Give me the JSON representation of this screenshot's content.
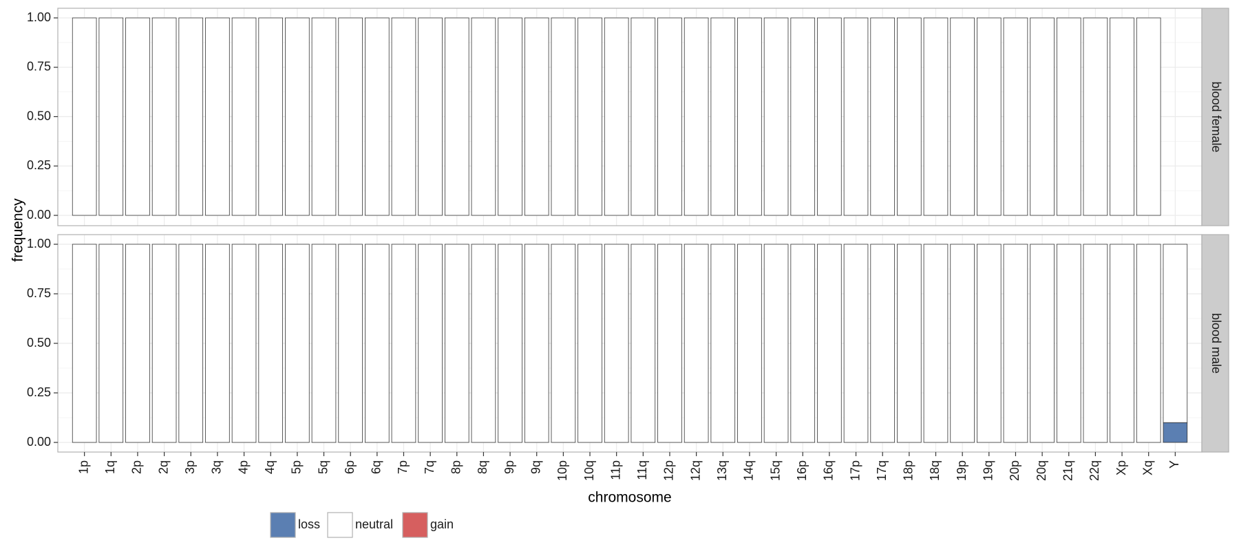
{
  "chart_data": {
    "type": "bar",
    "stacked": true,
    "xlabel": "chromosome",
    "ylabel": "frequency",
    "ylim": [
      0,
      1
    ],
    "y_ticks": [
      "0.00",
      "0.25",
      "0.50",
      "0.75",
      "1.00"
    ],
    "grid": true,
    "legend_position": "bottom",
    "categories": [
      "1p",
      "1q",
      "2p",
      "2q",
      "3p",
      "3q",
      "4p",
      "4q",
      "5p",
      "5q",
      "6p",
      "6q",
      "7p",
      "7q",
      "8p",
      "8q",
      "9p",
      "9q",
      "10p",
      "10q",
      "11p",
      "11q",
      "12p",
      "12q",
      "13q",
      "14q",
      "15q",
      "16p",
      "16q",
      "17p",
      "17q",
      "18p",
      "18q",
      "19p",
      "19q",
      "20p",
      "20q",
      "21q",
      "22q",
      "Xp",
      "Xq",
      "Y"
    ],
    "legend": [
      {
        "label": "loss",
        "color": "#5b7fb2"
      },
      {
        "label": "neutral",
        "color": "#ffffff"
      },
      {
        "label": "gain",
        "color": "#d65f5f"
      }
    ],
    "panels": [
      {
        "strip_label": "blood female",
        "loss": [
          0,
          0,
          0,
          0,
          0,
          0,
          0,
          0,
          0,
          0,
          0,
          0,
          0,
          0,
          0,
          0,
          0,
          0,
          0,
          0,
          0,
          0,
          0,
          0,
          0,
          0,
          0,
          0,
          0,
          0,
          0,
          0,
          0,
          0,
          0,
          0,
          0,
          0,
          0,
          0,
          0,
          0
        ],
        "neutral": [
          1,
          1,
          1,
          1,
          1,
          1,
          1,
          1,
          1,
          1,
          1,
          1,
          1,
          1,
          1,
          1,
          1,
          1,
          1,
          1,
          1,
          1,
          1,
          1,
          1,
          1,
          1,
          1,
          1,
          1,
          1,
          1,
          1,
          1,
          1,
          1,
          1,
          1,
          1,
          1,
          1,
          0
        ],
        "gain": [
          0,
          0,
          0,
          0,
          0,
          0,
          0,
          0,
          0,
          0,
          0,
          0,
          0,
          0,
          0,
          0,
          0,
          0,
          0,
          0,
          0,
          0,
          0,
          0,
          0,
          0,
          0,
          0,
          0,
          0,
          0,
          0,
          0,
          0,
          0,
          0,
          0,
          0,
          0,
          0,
          0,
          0
        ]
      },
      {
        "strip_label": "blood male",
        "loss": [
          0,
          0,
          0,
          0,
          0,
          0,
          0,
          0,
          0,
          0,
          0,
          0,
          0,
          0,
          0,
          0,
          0,
          0,
          0,
          0,
          0,
          0,
          0,
          0,
          0,
          0,
          0,
          0,
          0,
          0,
          0,
          0,
          0,
          0,
          0,
          0,
          0,
          0,
          0,
          0,
          0,
          0.1
        ],
        "neutral": [
          1,
          1,
          1,
          1,
          1,
          1,
          1,
          1,
          1,
          1,
          1,
          1,
          1,
          1,
          1,
          1,
          1,
          1,
          1,
          1,
          1,
          1,
          1,
          1,
          1,
          1,
          1,
          1,
          1,
          1,
          1,
          1,
          1,
          1,
          1,
          1,
          1,
          1,
          1,
          1,
          1,
          0.9
        ],
        "gain": [
          0,
          0,
          0,
          0,
          0,
          0,
          0,
          0,
          0,
          0,
          0,
          0,
          0,
          0,
          0,
          0,
          0,
          0,
          0,
          0,
          0,
          0,
          0,
          0,
          0,
          0,
          0,
          0,
          0,
          0,
          0,
          0,
          0,
          0,
          0,
          0,
          0,
          0,
          0,
          0,
          0,
          0
        ]
      }
    ]
  }
}
